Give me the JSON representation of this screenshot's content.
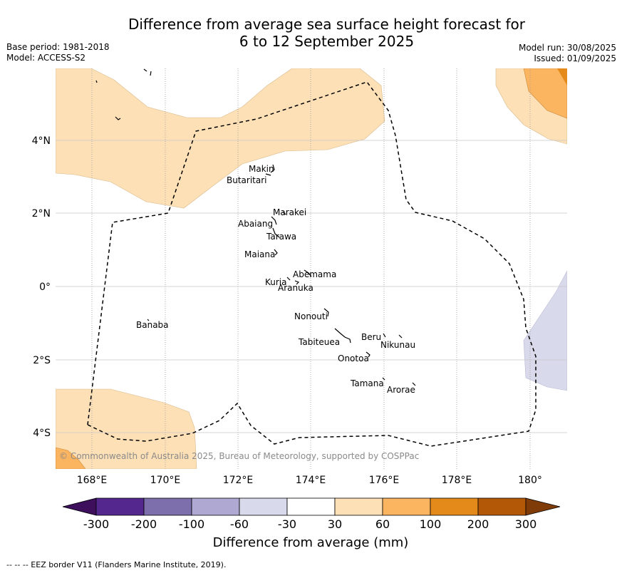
{
  "header": {
    "title_line1": "Difference from average sea surface height forecast for",
    "title_line2": "6 to 12 September 2025",
    "base_period": "Base period: 1981-2018",
    "model": "Model: ACCESS-S2",
    "model_run": "Model run: 30/08/2025",
    "issued": "Issued: 01/09/2025"
  },
  "map": {
    "copyright": "© Commonwealth of Australia 2025, Bureau of Meteorology, supported by COSPPac",
    "lon_labels": [
      "168°E",
      "170°E",
      "172°E",
      "174°E",
      "176°E",
      "178°E",
      "180°"
    ],
    "lat_labels": [
      "4°N",
      "2°N",
      "0°",
      "2°S",
      "4°S"
    ],
    "places": [
      {
        "name": "Makin"
      },
      {
        "name": "Butaritari"
      },
      {
        "name": "Marakei"
      },
      {
        "name": "Abaiang"
      },
      {
        "name": "Tarawa"
      },
      {
        "name": "Maiana"
      },
      {
        "name": "Abemama"
      },
      {
        "name": "Kuria"
      },
      {
        "name": "Aranuka"
      },
      {
        "name": "Nonouti"
      },
      {
        "name": "Banaba"
      },
      {
        "name": "Beru"
      },
      {
        "name": "Nikunau"
      },
      {
        "name": "Tabiteuea"
      },
      {
        "name": "Onotoa"
      },
      {
        "name": "Tamana"
      },
      {
        "name": "Arorae"
      }
    ],
    "eez_style": "black dashed line",
    "colors": {
      "pos_30_60": "#fde0b6",
      "pos_60_100": "#fbb460",
      "pos_100_200": "#e48a1a",
      "neg_30_60": "#d8d9ea"
    }
  },
  "colorbar": {
    "label": "Difference from average (mm)",
    "ticks": [
      "-300",
      "-200",
      "-100",
      "-60",
      "-30",
      "30",
      "60",
      "100",
      "200",
      "300"
    ],
    "colors": [
      "#3d0f5c",
      "#54278f",
      "#7d6fac",
      "#afa8d2",
      "#d8d9ea",
      "#ffffff",
      "#fde0b6",
      "#fbb460",
      "#e48a1a",
      "#b35806",
      "#7f3b08"
    ]
  },
  "footer": {
    "legend_text": "--  --  -- EEZ border V11 (Flanders Marine Institute, 2019)."
  }
}
